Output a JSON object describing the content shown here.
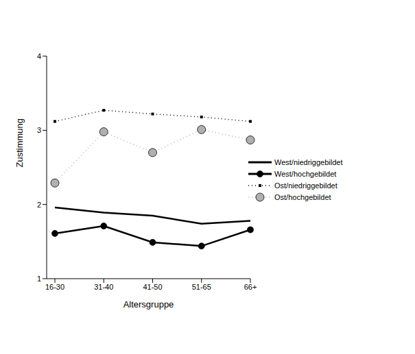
{
  "chart_data": {
    "type": "line",
    "x_label": "Altersgruppe",
    "y_label": "Zustimmung",
    "categories": [
      "16-30",
      "31-40",
      "41-50",
      "51-65",
      "66+"
    ],
    "series": [
      {
        "name": "West/niedriggebildet",
        "color": "#000000",
        "values": [
          1.96,
          1.89,
          1.85,
          1.74,
          1.78
        ],
        "marker": "none",
        "line_style": "solid"
      },
      {
        "name": "West/hochgebildet",
        "color": "#000000",
        "values": [
          1.61,
          1.71,
          1.49,
          1.44,
          1.66
        ],
        "marker": "circle",
        "line_style": "solid"
      },
      {
        "name": "Ost/niedriggebildet",
        "color": "#000000",
        "values": [
          3.12,
          3.27,
          3.22,
          3.18,
          3.12
        ],
        "marker": "square",
        "line_style": "dotted"
      },
      {
        "name": "Ost/hochgebildet",
        "color": "#b0b0b0",
        "values": [
          2.29,
          2.98,
          2.7,
          3.01,
          2.87
        ],
        "marker": "circle",
        "line_style": "dotted"
      }
    ],
    "ylim": [
      1,
      4
    ],
    "yticks": [
      1,
      2,
      3,
      4
    ],
    "legend": "right"
  }
}
